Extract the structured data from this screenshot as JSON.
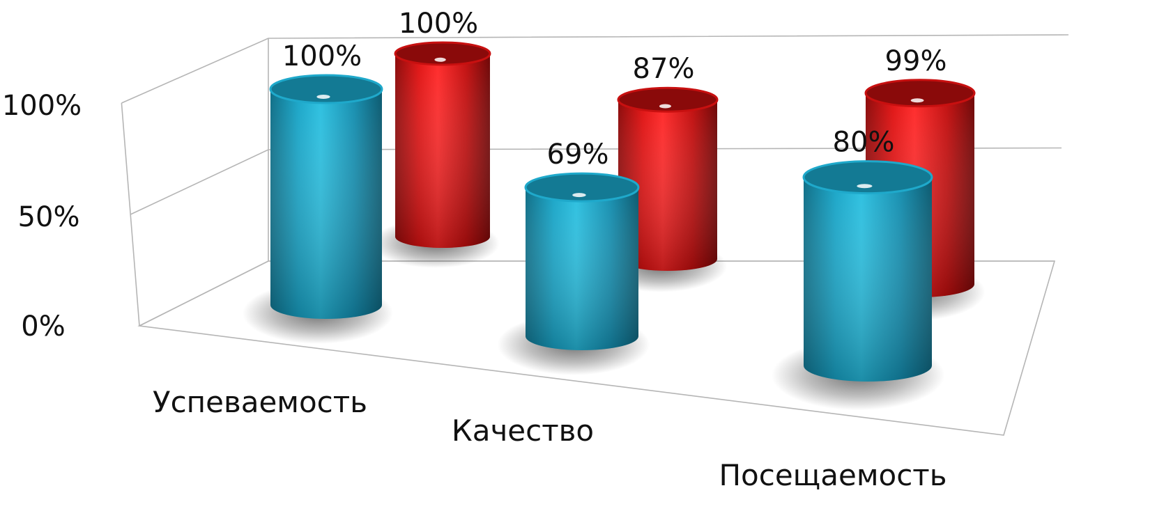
{
  "chart_data": {
    "type": "bar",
    "categories": [
      "Успеваемость",
      "Качество",
      "Посещаемость"
    ],
    "series": [
      {
        "values": [
          100,
          69,
          80
        ],
        "labels": [
          "100%",
          "69%",
          "80%"
        ],
        "color": "#1aa6c8"
      },
      {
        "values": [
          100,
          87,
          99
        ],
        "labels": [
          "100%",
          "87%",
          "99%"
        ],
        "color": "#e01414"
      }
    ],
    "y_ticks": [
      "0%",
      "50%",
      "100%"
    ],
    "ylim": [
      0,
      100
    ],
    "grid": true,
    "style": "3d-cylinder"
  }
}
